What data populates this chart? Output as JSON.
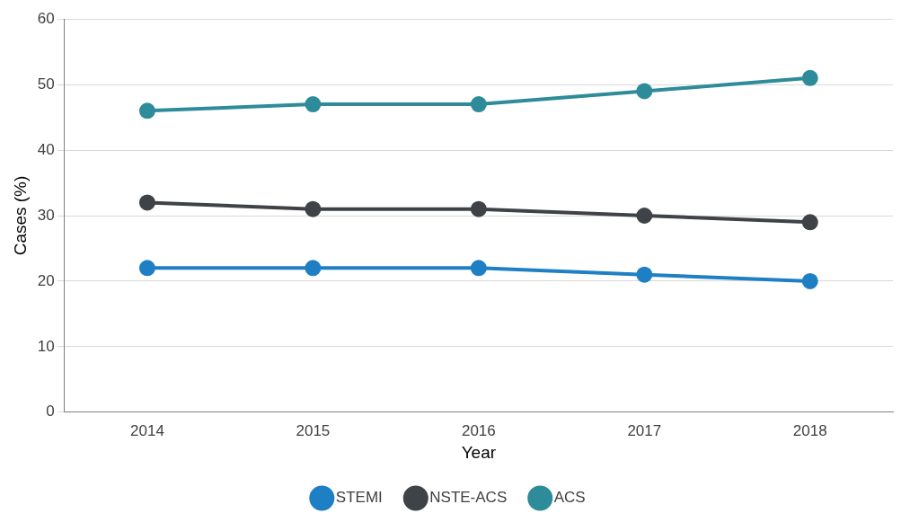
{
  "chart_data": {
    "type": "line",
    "xlabel": "Year",
    "ylabel": "Cases (%)",
    "categories": [
      "2014",
      "2015",
      "2016",
      "2017",
      "2018"
    ],
    "series": [
      {
        "name": "STEMI",
        "color": "#1f7fc4",
        "values": [
          22,
          22,
          22,
          21,
          20
        ]
      },
      {
        "name": "NSTE-ACS",
        "color": "#3f4347",
        "values": [
          32,
          31,
          31,
          30,
          29
        ]
      },
      {
        "name": "ACS",
        "color": "#2e8b9a",
        "values": [
          46,
          47,
          47,
          49,
          51
        ]
      }
    ],
    "ylim": [
      0,
      60
    ],
    "yticks": [
      0,
      10,
      20,
      30,
      40,
      50,
      60
    ],
    "grid": "y",
    "legend": "bottom",
    "marker": "circle",
    "line_style": "solid"
  }
}
